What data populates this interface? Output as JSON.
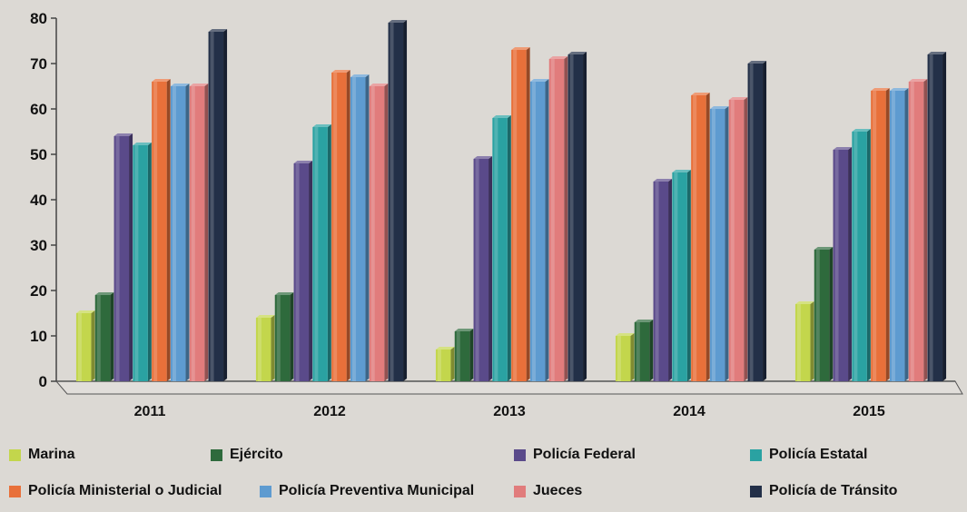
{
  "chart_data": {
    "type": "bar",
    "categories": [
      "2011",
      "2012",
      "2013",
      "2014",
      "2015"
    ],
    "ylim": [
      0,
      80
    ],
    "yticks": [
      "0",
      "10",
      "20",
      "30",
      "40",
      "50",
      "60",
      "70",
      "80"
    ],
    "grid": false,
    "legend_position": "bottom",
    "series": [
      {
        "name": "Marina",
        "color": "#c3d64c",
        "values": [
          15,
          14,
          7,
          10,
          17
        ]
      },
      {
        "name": "Ejército",
        "color": "#2e6a3c",
        "values": [
          19,
          19,
          11,
          13,
          29
        ]
      },
      {
        "name": "Policía Federal",
        "color": "#5a4a8a",
        "values": [
          54,
          48,
          49,
          44,
          51
        ]
      },
      {
        "name": "Policía Estatal",
        "color": "#2aa2a2",
        "values": [
          52,
          56,
          58,
          46,
          55
        ]
      },
      {
        "name": "Policía Ministerial o Judicial",
        "color": "#e8703a",
        "values": [
          66,
          68,
          73,
          63,
          64
        ]
      },
      {
        "name": "Policía Preventiva Municipal",
        "color": "#5e9bd0",
        "values": [
          65,
          67,
          66,
          60,
          64
        ]
      },
      {
        "name": "Jueces",
        "color": "#e17c7c",
        "values": [
          65,
          65,
          71,
          62,
          66
        ]
      },
      {
        "name": "Policía de Tránsito",
        "color": "#233048",
        "values": [
          77,
          79,
          72,
          70,
          72
        ]
      }
    ]
  }
}
